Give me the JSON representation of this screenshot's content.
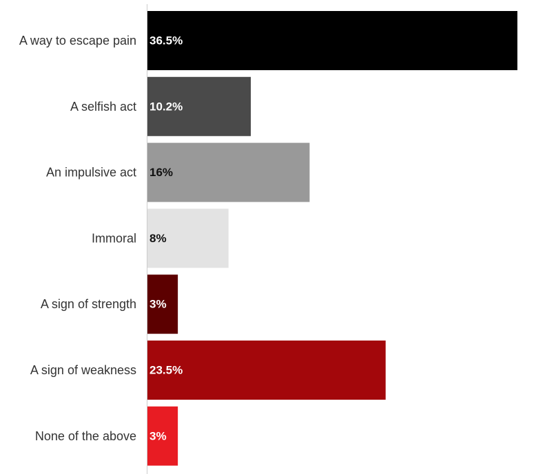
{
  "chart_data": {
    "type": "bar",
    "orientation": "horizontal",
    "categories": [
      "A way to escape pain",
      "A selfish act",
      "An impulsive act",
      "Immoral",
      "A sign of strength",
      "A sign of weakness",
      "None of the above"
    ],
    "values": [
      36.5,
      10.2,
      16,
      8,
      3,
      23.5,
      3
    ],
    "value_labels": [
      "36.5%",
      "10.2%",
      "16%",
      "8%",
      "3%",
      "23.5%",
      "3%"
    ],
    "colors": [
      "#000000",
      "#4a4a4a",
      "#999999",
      "#e3e3e3",
      "#5c0000",
      "#a3070b",
      "#e81c23"
    ],
    "label_colors": [
      "#ffffff",
      "#ffffff",
      "#111111",
      "#111111",
      "#ffffff",
      "#ffffff",
      "#ffffff"
    ],
    "xlim": [
      0,
      36.5
    ],
    "grid": false,
    "legend": "none"
  }
}
